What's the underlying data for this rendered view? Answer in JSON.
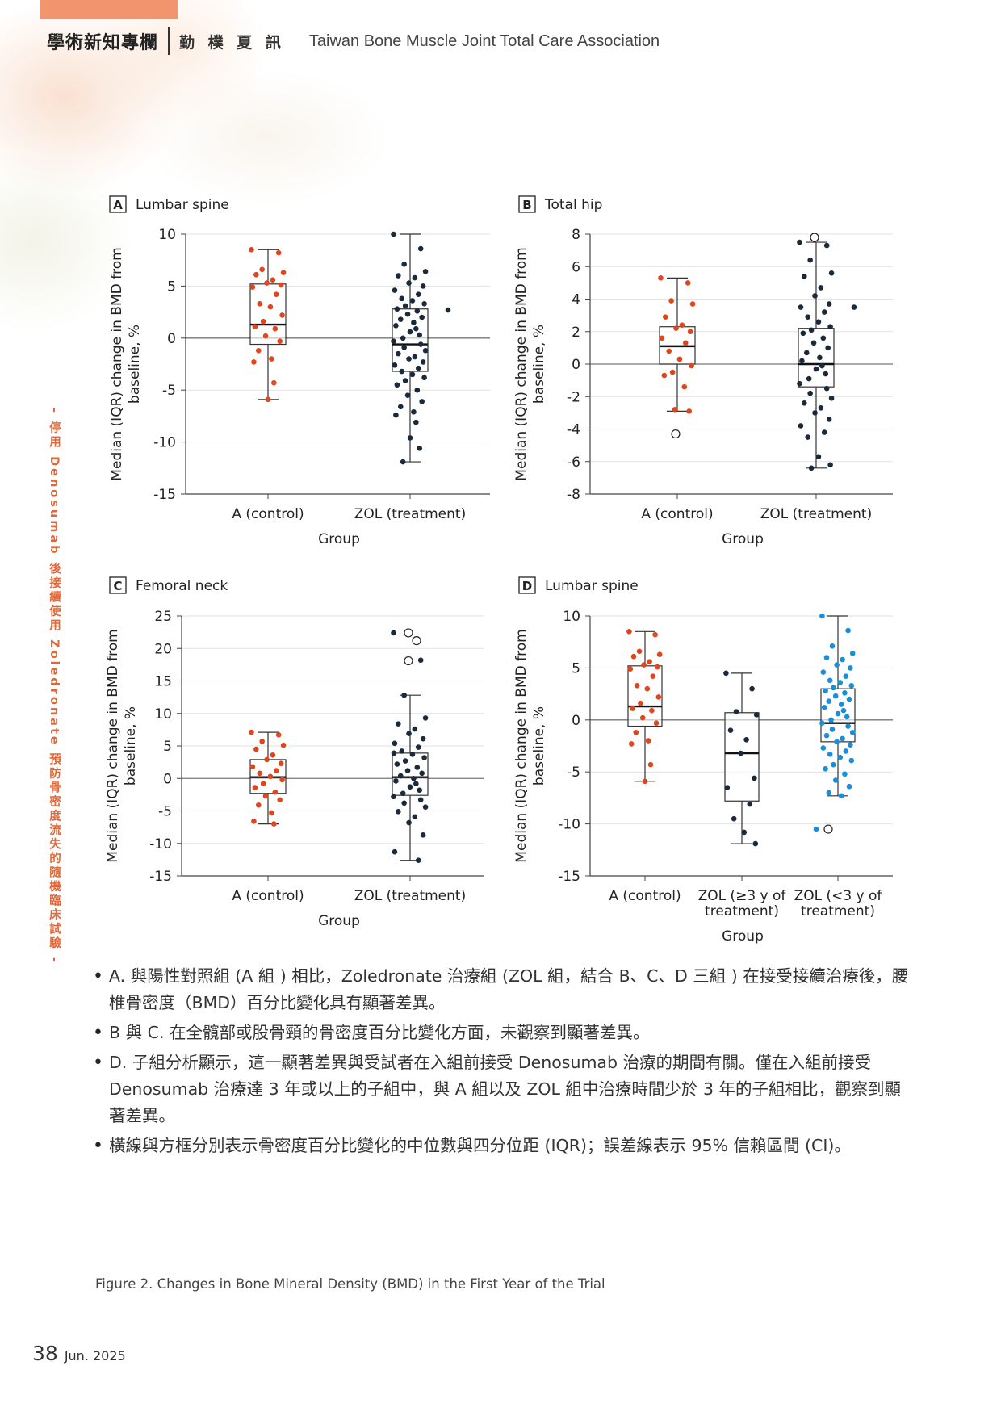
{
  "header": {
    "column": "學術新知專欄",
    "publication": "勤 樸 夏 訊",
    "association": "Taiwan Bone Muscle Joint Total Care Association"
  },
  "side_title": "- 停用 Denosumab 後接續使用 Zoledronate 預防骨密度流失的隨機臨床試驗 -",
  "chart_data": [
    {
      "type": "scatter",
      "panel": "A",
      "title": "Lumbar spine",
      "xlabel": "Group",
      "ylabel": "Median (IQR) change in BMD from baseline, %",
      "ylim": [
        -15,
        10
      ],
      "yticks": [
        10,
        5,
        0,
        -5,
        -10,
        -15
      ],
      "categories": [
        "A (control)",
        "ZOL (treatment)"
      ],
      "series": [
        {
          "color": "#e0461e",
          "box": {
            "median": 1.3,
            "q1": -0.6,
            "q3": 5.2,
            "whisker_low": -5.9,
            "whisker_high": 8.5
          },
          "outliers": [],
          "points": [
            8.5,
            8.2,
            6.6,
            6.3,
            6.1,
            5.6,
            5.3,
            5.1,
            4.9,
            4.2,
            3.3,
            3.0,
            2.2,
            1.6,
            1.1,
            0.9,
            0.2,
            -0.3,
            -1.2,
            -2.0,
            -2.3,
            -4.3,
            -5.9
          ]
        },
        {
          "color": "#1b2a3a",
          "box": {
            "median": -0.6,
            "q1": -3.2,
            "q3": 2.8,
            "whisker_low": -11.9,
            "whisker_high": 10.0
          },
          "outliers": [],
          "points": [
            10.0,
            8.6,
            7.1,
            6.4,
            6.0,
            5.8,
            5.3,
            5.0,
            4.6,
            4.2,
            3.8,
            3.6,
            3.3,
            3.1,
            2.8,
            2.6,
            2.3,
            2.0,
            1.8,
            1.5,
            1.2,
            0.9,
            0.6,
            0.3,
            0.0,
            -0.3,
            -0.6,
            -0.9,
            -1.2,
            -1.5,
            -1.8,
            -2.0,
            -2.3,
            -2.6,
            -2.9,
            -3.2,
            -3.5,
            -3.8,
            -4.1,
            -4.5,
            -5.0,
            -5.5,
            -6.1,
            -6.6,
            -7.1,
            -7.4,
            -8.1,
            -9.6,
            -10.6,
            -11.9,
            2.7
          ]
        }
      ]
    },
    {
      "type": "scatter",
      "panel": "B",
      "title": "Total hip",
      "xlabel": "Group",
      "ylabel": "Median (IQR) change in BMD from baseline, %",
      "ylim": [
        -8,
        8
      ],
      "yticks": [
        8,
        6,
        4,
        2,
        0,
        -2,
        -4,
        -6,
        -8
      ],
      "categories": [
        "A (control)",
        "ZOL (treatment)"
      ],
      "series": [
        {
          "color": "#e0461e",
          "box": {
            "median": 1.1,
            "q1": 0.0,
            "q3": 2.3,
            "whisker_low": -2.9,
            "whisker_high": 5.3
          },
          "outliers": [
            -4.3
          ],
          "points": [
            5.3,
            5.0,
            3.9,
            3.7,
            2.9,
            2.4,
            2.2,
            2.0,
            1.6,
            1.3,
            0.8,
            0.3,
            -0.1,
            -0.5,
            -0.7,
            -1.4,
            -2.8,
            -2.9
          ]
        },
        {
          "color": "#1b2a3a",
          "box": {
            "median": 0.0,
            "q1": -1.4,
            "q3": 2.2,
            "whisker_low": -6.4,
            "whisker_high": 7.5
          },
          "outliers": [
            7.8
          ],
          "points": [
            7.5,
            7.3,
            6.4,
            5.6,
            5.4,
            4.7,
            4.2,
            3.7,
            3.5,
            3.2,
            2.9,
            2.6,
            2.3,
            2.1,
            1.9,
            1.6,
            1.3,
            1.0,
            0.7,
            0.4,
            0.2,
            -0.1,
            -0.3,
            -0.6,
            -0.9,
            -1.2,
            -1.5,
            -1.8,
            -2.1,
            -2.4,
            -2.7,
            -3.0,
            -3.4,
            -3.8,
            -4.2,
            -4.5,
            -5.7,
            -6.2,
            -6.4,
            3.5
          ]
        }
      ]
    },
    {
      "type": "scatter",
      "panel": "C",
      "title": "Femoral neck",
      "xlabel": "Group",
      "ylabel": "Median (IQR) change in BMD from baseline, %",
      "ylim": [
        -15,
        25
      ],
      "yticks": [
        25,
        20,
        15,
        10,
        5,
        0,
        -5,
        -10,
        -15
      ],
      "categories": [
        "A (control)",
        "ZOL (treatment)"
      ],
      "series": [
        {
          "color": "#e0461e",
          "box": {
            "median": 0.2,
            "q1": -2.3,
            "q3": 2.9,
            "whisker_low": -7.0,
            "whisker_high": 7.1
          },
          "outliers": [],
          "points": [
            7.1,
            6.7,
            5.7,
            5.1,
            4.5,
            3.6,
            2.9,
            2.3,
            1.8,
            1.2,
            0.8,
            0.3,
            -0.2,
            -0.8,
            -1.4,
            -2.1,
            -2.7,
            -3.3,
            -4.1,
            -5.3,
            -6.6,
            -7.0
          ]
        },
        {
          "color": "#1b2a3a",
          "box": {
            "median": 0.2,
            "q1": -2.6,
            "q3": 3.9,
            "whisker_low": -12.6,
            "whisker_high": 12.8
          },
          "outliers": [
            22.4,
            21.2,
            18.1
          ],
          "points": [
            22.4,
            18.2,
            12.8,
            9.3,
            8.4,
            7.6,
            6.9,
            6.1,
            5.4,
            4.8,
            4.2,
            3.7,
            3.2,
            2.7,
            2.2,
            1.7,
            1.2,
            0.8,
            0.4,
            0.0,
            -0.4,
            -0.8,
            -1.3,
            -1.8,
            -2.3,
            -2.8,
            -3.3,
            -3.8,
            -4.4,
            -5.1,
            -5.9,
            -6.8,
            -8.7,
            -11.3,
            -12.6,
            3.9
          ]
        }
      ]
    },
    {
      "type": "scatter",
      "panel": "D",
      "title": "Lumbar spine",
      "xlabel": "Group",
      "ylabel": "Median (IQR) change in BMD from baseline, %",
      "ylim": [
        -15,
        10
      ],
      "yticks": [
        10,
        5,
        0,
        -5,
        -10,
        -15
      ],
      "categories": [
        "A (control)",
        "ZOL (≥3 y of treatment)",
        "ZOL (<3 y of treatment)"
      ],
      "series": [
        {
          "color": "#e0461e",
          "box": {
            "median": 1.3,
            "q1": -0.6,
            "q3": 5.2,
            "whisker_low": -5.9,
            "whisker_high": 8.5
          },
          "outliers": [],
          "points": [
            8.5,
            8.2,
            6.6,
            6.3,
            6.1,
            5.6,
            5.3,
            5.1,
            4.9,
            4.2,
            3.3,
            3.0,
            2.2,
            1.6,
            1.1,
            0.9,
            0.2,
            -0.3,
            -1.2,
            -2.0,
            -2.3,
            -4.3,
            -5.9
          ]
        },
        {
          "color": "#1b2a3a",
          "box": {
            "median": -3.2,
            "q1": -7.8,
            "q3": 0.7,
            "whisker_low": -11.9,
            "whisker_high": 4.5
          },
          "outliers": [],
          "points": [
            4.5,
            3.0,
            0.8,
            0.5,
            -1.0,
            -1.9,
            -3.2,
            -5.6,
            -6.5,
            -8.1,
            -9.5,
            -10.8,
            -11.9
          ]
        },
        {
          "color": "#1a8fd8",
          "box": {
            "median": -0.3,
            "q1": -2.1,
            "q3": 3.0,
            "whisker_low": -7.3,
            "whisker_high": 10.0
          },
          "outliers": [
            -10.5
          ],
          "points": [
            10.0,
            8.6,
            7.1,
            6.4,
            6.0,
            5.8,
            5.3,
            5.0,
            4.6,
            4.2,
            3.8,
            3.6,
            3.3,
            3.1,
            2.8,
            2.6,
            2.3,
            2.0,
            1.8,
            1.5,
            1.2,
            0.9,
            0.6,
            0.3,
            0.0,
            -0.3,
            -0.6,
            -0.9,
            -1.2,
            -1.5,
            -1.8,
            -2.1,
            -2.4,
            -2.7,
            -3.0,
            -3.3,
            -3.6,
            -3.9,
            -4.3,
            -4.7,
            -5.2,
            -5.8,
            -6.4,
            -7.0,
            -7.3,
            -10.5
          ]
        }
      ]
    }
  ],
  "bullets": [
    "A. 與陽性對照組 (A 組 ) 相比，Zoledronate 治療組 (ZOL 組，結合 B、C、D 三組 ) 在接受接續治療後，腰椎骨密度（BMD）百分比變化具有顯著差異。",
    "B 與 C. 在全髖部或股骨頸的骨密度百分比變化方面，未觀察到顯著差異。",
    "D. 子組分析顯示，這一顯著差異與受試者在入組前接受 Denosumab 治療的期間有關。僅在入組前接受 Denosumab 治療達 3 年或以上的子組中，與 A 組以及 ZOL 組中治療時間少於 3 年的子組相比，觀察到顯著差異。",
    "橫線與方框分別表示骨密度百分比變化的中位數與四分位距 (IQR)；誤差線表示 95% 信賴區間 (CI)。"
  ],
  "caption": "Figure 2. Changes in Bone Mineral Density (BMD) in the First Year of the Trial",
  "footer": {
    "page": "38",
    "date": "Jun. 2025"
  }
}
